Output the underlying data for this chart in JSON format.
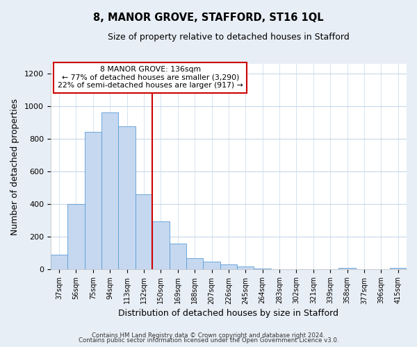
{
  "title": "8, MANOR GROVE, STAFFORD, ST16 1QL",
  "subtitle": "Size of property relative to detached houses in Stafford",
  "xlabel": "Distribution of detached houses by size in Stafford",
  "ylabel": "Number of detached properties",
  "bin_labels": [
    "37sqm",
    "56sqm",
    "75sqm",
    "94sqm",
    "113sqm",
    "132sqm",
    "150sqm",
    "169sqm",
    "188sqm",
    "207sqm",
    "226sqm",
    "245sqm",
    "264sqm",
    "283sqm",
    "302sqm",
    "321sqm",
    "339sqm",
    "358sqm",
    "377sqm",
    "396sqm",
    "415sqm"
  ],
  "bar_heights": [
    90,
    400,
    845,
    965,
    880,
    460,
    295,
    160,
    70,
    50,
    33,
    18,
    8,
    0,
    0,
    0,
    0,
    10,
    0,
    0,
    10
  ],
  "bar_color": "#c5d8f0",
  "bar_edge_color": "#5b9bd5",
  "vline_color": "#cc0000",
  "annotation_title": "8 MANOR GROVE: 136sqm",
  "annotation_line1": "← 77% of detached houses are smaller (3,290)",
  "annotation_line2": "22% of semi-detached houses are larger (917) →",
  "annotation_box_color": "#cc0000",
  "ylim": [
    0,
    1260
  ],
  "yticks": [
    0,
    200,
    400,
    600,
    800,
    1000,
    1200
  ],
  "footer1": "Contains HM Land Registry data © Crown copyright and database right 2024.",
  "footer2": "Contains public sector information licensed under the Open Government Licence v3.0.",
  "fig_bg_color": "#e8eef5",
  "plot_bg_color": "#ffffff",
  "grid_color": "#c8d8e8"
}
